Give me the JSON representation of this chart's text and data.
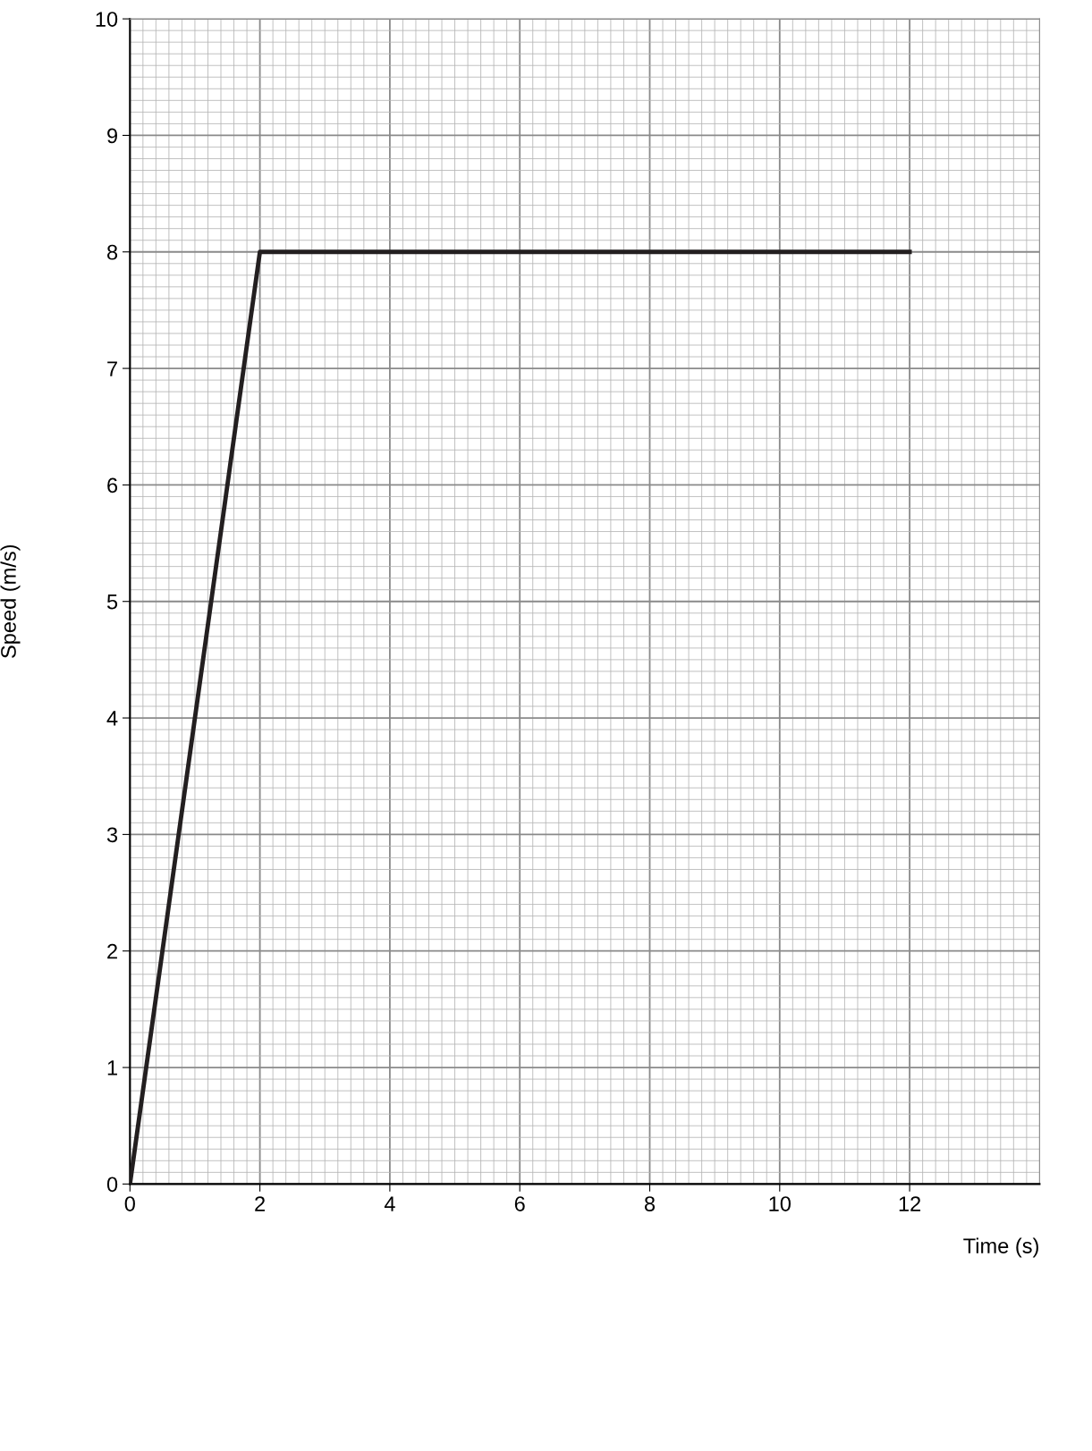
{
  "chart_data": {
    "type": "line",
    "xlabel": "Time (s)",
    "ylabel": "Speed (m/s)",
    "x": [
      0,
      2,
      12
    ],
    "series": [
      {
        "color": "#231f20",
        "values": [
          0,
          8,
          8
        ]
      }
    ],
    "xlim": [
      0,
      14
    ],
    "xticks": [
      0,
      2,
      4,
      6,
      8,
      10,
      12
    ],
    "ylim": [
      0,
      10
    ],
    "yticks": [
      0,
      1,
      2,
      3,
      4,
      5,
      6,
      7,
      8,
      9,
      10
    ],
    "grid": true,
    "marker": "none",
    "line_style": "solid",
    "legend": false
  }
}
